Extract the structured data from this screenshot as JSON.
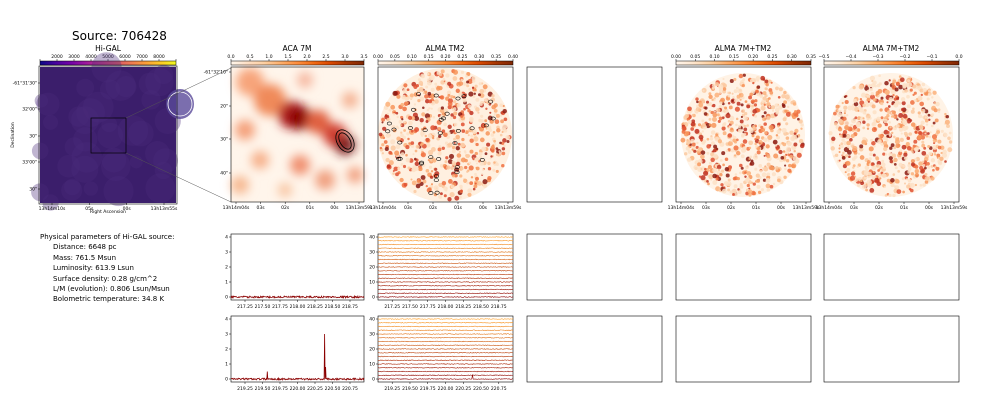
{
  "source_title": "Source: 706428",
  "params": {
    "header": "Physical parameters of Hi-GAL source:",
    "items": [
      "Distance: 6648 pc",
      "Mass: 761.5 Msun",
      "Luminosity: 613.9 Lsun",
      "Surface density: 0.28 g/cm^2",
      "L/M (evolution): 0.806 Lsun/Msun",
      "Bolometric temperature: 34.8 K"
    ]
  },
  "colors": {
    "higal_bg": "#3b1e6b",
    "higal_cb": [
      "#0d0887",
      "#46039f",
      "#7201a8",
      "#9c179e",
      "#bd3786",
      "#d8576b",
      "#ed7953",
      "#fb9f3a",
      "#fdca26",
      "#f0f921"
    ],
    "heat_cb": [
      "#fff5eb",
      "#fee6ce",
      "#fdd0a2",
      "#fdae6b",
      "#fd8d3c",
      "#f16913",
      "#d94801",
      "#a63603",
      "#7f2704"
    ],
    "spectrum": "#8b0000"
  },
  "chart_data": [
    {
      "type": "heatmap",
      "panel": "higal",
      "title": "Hi-GAL",
      "xlabel": "Right Ascension",
      "ylabel": "Declination",
      "colorbar_ticks": [
        "2000",
        "3000",
        "4000",
        "5000",
        "6000",
        "7000",
        "8000"
      ],
      "xticks": [
        "13h14m10s",
        "05s",
        "00s",
        "13h13m55s"
      ],
      "yticks": [
        "-61°31'30\"",
        "32'00\"",
        "30\"",
        "33'00\"",
        "30\""
      ]
    },
    {
      "type": "heatmap",
      "panel": "aca7m",
      "title": "ACA 7M",
      "colorbar_ticks": [
        "0.0",
        "0.5",
        "1.0",
        "1.5",
        "2.0",
        "2.5",
        "3.0",
        "3.5"
      ],
      "xticks": [
        "13h14m04s",
        "03s",
        "02s",
        "01s",
        "00s",
        "13h13m59s"
      ],
      "yticks": [
        "-61°32'10\"",
        "20\"",
        "30\"",
        "40\""
      ]
    },
    {
      "type": "heatmap",
      "panel": "almatm2",
      "title": "ALMA TM2",
      "colorbar_ticks": [
        "0.00",
        "0.05",
        "0.10",
        "0.15",
        "0.20",
        "0.25",
        "0.30",
        "0.35",
        "0.40"
      ],
      "xticks": [
        "13h14m04s",
        "03s",
        "02s",
        "01s",
        "00s",
        "13h13m59s"
      ]
    },
    {
      "type": "heatmap",
      "panel": "alma7mtm2_a",
      "title": "ALMA 7M+TM2",
      "colorbar_ticks": [
        "0.00",
        "0.05",
        "0.10",
        "0.15",
        "0.20",
        "0.25",
        "0.30",
        "0.35"
      ],
      "xticks": [
        "13h14m04s",
        "03s",
        "02s",
        "01s",
        "00s",
        "13h13m59s"
      ]
    },
    {
      "type": "heatmap",
      "panel": "alma7mtm2_b",
      "title": "ALMA 7M+TM2",
      "colorbar_ticks": [
        "−0.5",
        "−0.4",
        "−0.3",
        "−0.2",
        "−0.1",
        "0.0"
      ],
      "xticks": [
        "13h14m04s",
        "03s",
        "02s",
        "01s",
        "00s",
        "13h13m59s"
      ]
    },
    {
      "type": "line",
      "panel": "spec_aca_row1",
      "xticks": [
        "217.25",
        "217.50",
        "217.75",
        "218.00",
        "218.25",
        "218.50",
        "218.75"
      ],
      "xlim": [
        217.05,
        218.95
      ],
      "yticks": [
        "0",
        "1",
        "2",
        "3",
        "4"
      ],
      "ylim": [
        -0.2,
        4.2
      ],
      "series": [
        {
          "x": [
            217.05,
            218.95
          ],
          "y": [
            0.0,
            0.0
          ]
        }
      ]
    },
    {
      "type": "line",
      "panel": "spec_tm2_row1",
      "xticks": [
        "217.25",
        "217.50",
        "217.75",
        "218.00",
        "218.25",
        "218.50",
        "218.75"
      ],
      "xlim": [
        217.05,
        218.95
      ],
      "yticks": [
        "0",
        "10",
        "20",
        "30",
        "40"
      ],
      "ylim": [
        -2,
        42
      ],
      "offsets": [
        0,
        2.5,
        5,
        7.5,
        10,
        12.5,
        15,
        17.5,
        20,
        22.5,
        25,
        27.5,
        30,
        32.5,
        35,
        37.5,
        40
      ]
    },
    {
      "type": "line",
      "panel": "spec_aca_row2",
      "xticks": [
        "219.25",
        "219.50",
        "219.75",
        "220.00",
        "220.25",
        "220.50",
        "220.75"
      ],
      "xlim": [
        219.05,
        220.95
      ],
      "yticks": [
        "0",
        "1",
        "2",
        "3",
        "4"
      ],
      "ylim": [
        -0.2,
        4.2
      ],
      "series": [
        {
          "x": [
            219.05,
            219.55,
            219.57,
            219.6,
            220.38,
            220.39,
            220.4,
            220.41,
            220.95
          ],
          "y": [
            0.0,
            0.0,
            0.5,
            0.0,
            0.0,
            3.0,
            0.8,
            0.0,
            0.0
          ]
        }
      ]
    },
    {
      "type": "line",
      "panel": "spec_tm2_row2",
      "xticks": [
        "219.25",
        "219.50",
        "219.75",
        "220.00",
        "220.25",
        "220.50",
        "220.75"
      ],
      "xlim": [
        219.05,
        220.95
      ],
      "yticks": [
        "0",
        "10",
        "20",
        "30",
        "40"
      ],
      "ylim": [
        -2,
        42
      ],
      "offsets": [
        0,
        2.5,
        5,
        7.5,
        10,
        12.5,
        15,
        17.5,
        20,
        22.5,
        25,
        27.5,
        30,
        32.5,
        35,
        37.5,
        40
      ]
    }
  ]
}
